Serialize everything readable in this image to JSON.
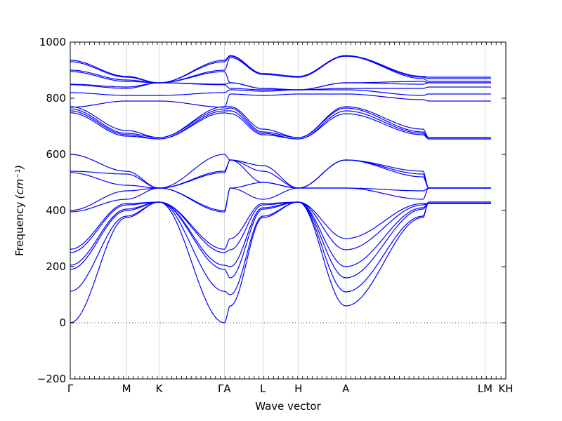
{
  "chart_data": {
    "type": "line",
    "title": "",
    "xlabel": "Wave vector",
    "ylabel": "Frequency",
    "ylabel_unit": "(cm⁻¹)",
    "ylim": [
      -200,
      1000
    ],
    "yticks": [
      -200,
      0,
      200,
      400,
      600,
      800,
      1000
    ],
    "ytick_labels": [
      "−200",
      "0",
      "200",
      "400",
      "600",
      "800",
      "1000"
    ],
    "grid": false,
    "legend": "none",
    "zero_line": {
      "value": 0,
      "style": "dotted"
    },
    "line_color": "#0000ff",
    "high_symmetry_points": [
      {
        "label": "Γ",
        "x": 0
      },
      {
        "label": "M",
        "x": 0.19
      },
      {
        "label": "K",
        "x": 0.3
      },
      {
        "label": "ΓA",
        "x": 0.52
      },
      {
        "label": "L",
        "x": 0.65
      },
      {
        "label": "H",
        "x": 0.77
      },
      {
        "label": "A",
        "x": 0.93
      },
      {
        "label": "LM",
        "x": 1.4
      },
      {
        "label": "KH",
        "x": 1.47
      }
    ],
    "x_path_nodes": [
      0,
      0.19,
      0.3,
      0.52,
      0.54,
      0.65,
      0.77,
      0.93,
      1.19,
      1.21,
      1.4,
      1.42
    ],
    "series": [
      {
        "values": [
          0,
          375,
          430,
          0,
          60,
          375,
          430,
          60,
          375,
          430,
          430,
          430
        ]
      },
      {
        "values": [
          112,
          380,
          430,
          112,
          100,
          380,
          430,
          110,
          380,
          430,
          430,
          430
        ]
      },
      {
        "values": [
          190,
          400,
          430,
          190,
          160,
          405,
          430,
          160,
          405,
          425,
          425,
          425
        ]
      },
      {
        "values": [
          205,
          405,
          430,
          205,
          200,
          410,
          430,
          200,
          410,
          425,
          425,
          425
        ]
      },
      {
        "values": [
          250,
          420,
          430,
          250,
          260,
          420,
          430,
          260,
          420,
          425,
          425,
          425
        ]
      },
      {
        "values": [
          262,
          425,
          430,
          262,
          300,
          425,
          430,
          300,
          425,
          425,
          425,
          425
        ]
      },
      {
        "values": [
          395,
          440,
          480,
          395,
          480,
          440,
          480,
          480,
          440,
          480,
          480,
          480
        ]
      },
      {
        "values": [
          400,
          470,
          480,
          400,
          480,
          500,
          480,
          480,
          470,
          480,
          480,
          480
        ]
      },
      {
        "values": [
          535,
          490,
          480,
          535,
          580,
          500,
          480,
          580,
          520,
          480,
          480,
          480
        ]
      },
      {
        "values": [
          540,
          530,
          480,
          540,
          580,
          540,
          480,
          580,
          530,
          480,
          480,
          480
        ]
      },
      {
        "values": [
          600,
          540,
          480,
          600,
          580,
          560,
          480,
          580,
          540,
          480,
          480,
          480
        ]
      },
      {
        "values": [
          748,
          665,
          655,
          748,
          745,
          670,
          655,
          745,
          670,
          655,
          655,
          655
        ]
      },
      {
        "values": [
          755,
          670,
          655,
          755,
          755,
          675,
          655,
          755,
          675,
          655,
          655,
          655
        ]
      },
      {
        "values": [
          762,
          675,
          660,
          762,
          765,
          680,
          660,
          765,
          680,
          660,
          660,
          660
        ]
      },
      {
        "values": [
          770,
          685,
          660,
          770,
          770,
          690,
          660,
          770,
          690,
          660,
          660,
          660
        ]
      },
      {
        "values": [
          768,
          790,
          790,
          768,
          815,
          810,
          815,
          815,
          795,
          790,
          790,
          790
        ]
      },
      {
        "values": [
          820,
          810,
          810,
          820,
          830,
          825,
          830,
          830,
          810,
          815,
          815,
          815
        ]
      },
      {
        "values": [
          848,
          835,
          855,
          848,
          835,
          830,
          830,
          835,
          835,
          840,
          840,
          840
        ]
      },
      {
        "values": [
          850,
          840,
          855,
          850,
          855,
          835,
          830,
          855,
          850,
          855,
          855,
          855
        ]
      },
      {
        "values": [
          895,
          860,
          855,
          895,
          855,
          835,
          830,
          855,
          860,
          855,
          855,
          855
        ]
      },
      {
        "values": [
          900,
          865,
          855,
          900,
          945,
          885,
          875,
          950,
          870,
          860,
          860,
          860
        ]
      },
      {
        "values": [
          930,
          875,
          855,
          930,
          950,
          885,
          875,
          950,
          875,
          870,
          870,
          870
        ]
      },
      {
        "values": [
          935,
          878,
          855,
          935,
          952,
          888,
          878,
          952,
          878,
          875,
          875,
          875
        ]
      }
    ]
  }
}
